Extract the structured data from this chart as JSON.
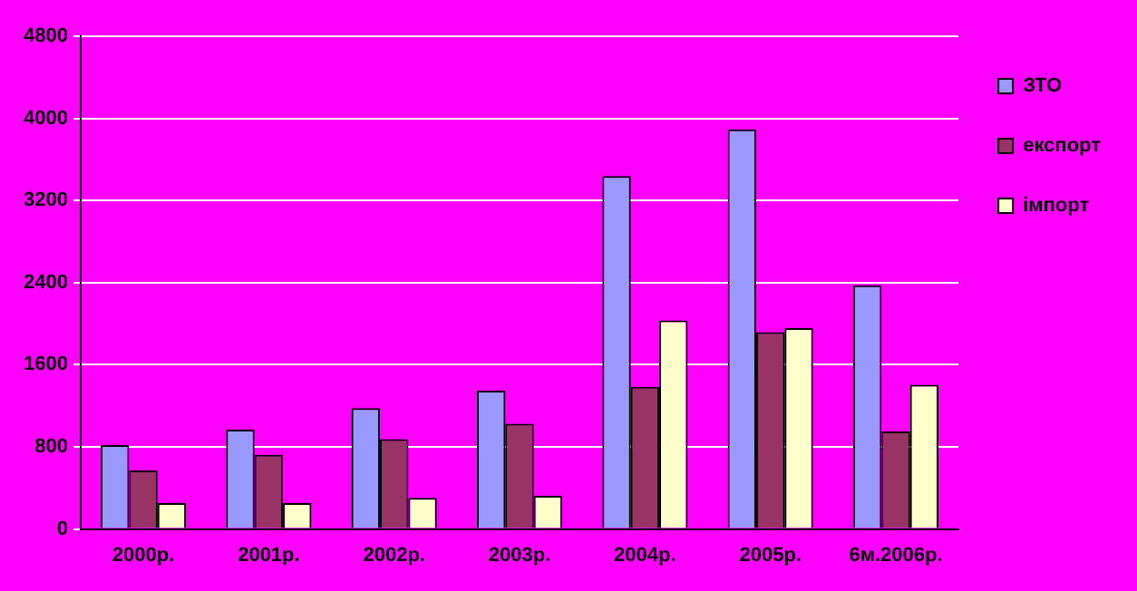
{
  "chart_data": {
    "type": "bar",
    "categories": [
      "2000р.",
      "2001р.",
      "2002р.",
      "2003р.",
      "2004р.",
      "2005р.",
      "6м.2006р."
    ],
    "series": [
      {
        "name": "ЗТО",
        "color": "#9999ff",
        "values": [
          817,
          968,
          1177,
          1348,
          3437,
          3893,
          2374
        ]
      },
      {
        "name": "експорт",
        "color": "#993366",
        "values": [
          570,
          722,
          874,
          1025,
          1386,
          1918,
          950
        ]
      },
      {
        "name": "імпорт",
        "color": "#ffffcc",
        "values": [
          253,
          253,
          304,
          323,
          2032,
          1956,
          1405
        ]
      }
    ],
    "ylim": [
      0,
      4800
    ],
    "yticks": [
      0,
      800,
      1600,
      2400,
      3200,
      4000,
      4800
    ],
    "grid": "y",
    "legend": "right"
  }
}
